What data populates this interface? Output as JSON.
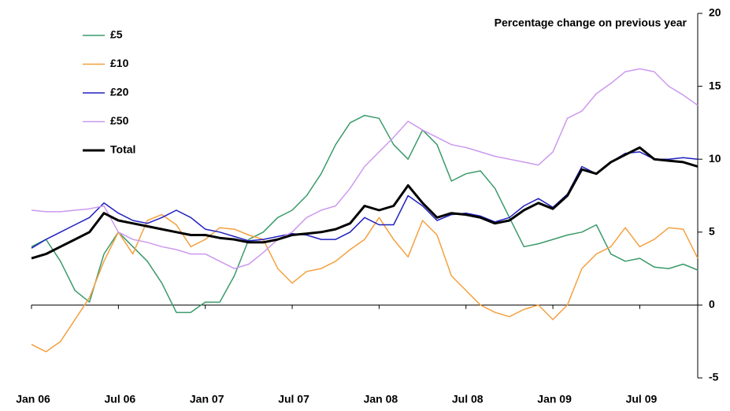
{
  "chart_data": {
    "type": "line",
    "title": "Percentage change on previous year",
    "categories": [
      "Jan 06",
      null,
      null,
      null,
      null,
      null,
      "Jul 06",
      null,
      null,
      null,
      null,
      null,
      "Jan 07",
      null,
      null,
      null,
      null,
      null,
      "Jul 07",
      null,
      null,
      null,
      null,
      null,
      "Jan 08",
      null,
      null,
      null,
      null,
      null,
      "Jul 08",
      null,
      null,
      null,
      null,
      null,
      "Jan 09",
      null,
      null,
      null,
      null,
      null,
      "Jul 09",
      null,
      null,
      null,
      null
    ],
    "series": [
      {
        "name": "£5",
        "color": "#3a9a6a",
        "values": [
          4.0,
          4.5,
          3.0,
          1.0,
          0.2,
          3.5,
          5.0,
          4.0,
          3.0,
          1.5,
          -0.5,
          -0.5,
          0.2,
          0.2,
          2.0,
          4.5,
          5.0,
          6.0,
          6.5,
          7.5,
          9.0,
          11.0,
          12.5,
          13.0,
          12.8,
          11.0,
          10.0,
          12.0,
          11.0,
          8.5,
          9.0,
          9.2,
          8.0,
          6.0,
          4.0,
          4.2,
          4.5,
          4.8,
          5.0,
          5.5,
          3.5,
          3.0,
          3.2,
          2.6,
          2.5,
          2.8,
          2.4
        ]
      },
      {
        "name": "£10",
        "color": "#f4a040",
        "values": [
          -2.7,
          -3.2,
          -2.5,
          -1.0,
          0.5,
          3.0,
          5.0,
          3.5,
          5.8,
          6.2,
          5.5,
          4.0,
          4.5,
          5.3,
          5.2,
          4.8,
          4.5,
          2.5,
          1.5,
          2.3,
          2.5,
          3.0,
          3.8,
          4.5,
          6.0,
          4.5,
          3.3,
          5.8,
          4.8,
          2.0,
          1.0,
          0.0,
          -0.5,
          -0.8,
          -0.3,
          0.0,
          -1.0,
          0.0,
          2.5,
          3.5,
          4.0,
          5.3,
          4.0,
          4.5,
          5.3,
          5.2,
          3.2
        ]
      },
      {
        "name": "£20",
        "color": "#2020c0",
        "values": [
          3.9,
          4.5,
          5.0,
          5.5,
          6.0,
          7.0,
          6.3,
          5.8,
          5.6,
          6.0,
          6.5,
          6.0,
          5.2,
          5.0,
          4.7,
          4.4,
          4.5,
          4.7,
          4.9,
          4.8,
          4.5,
          4.5,
          5.0,
          6.0,
          5.5,
          5.5,
          7.5,
          6.8,
          5.8,
          6.2,
          6.3,
          6.1,
          5.7,
          6.0,
          6.8,
          7.3,
          6.7,
          7.6,
          9.5,
          9.0,
          9.8,
          10.4,
          10.5,
          10.0,
          10.0,
          10.1,
          10.0
        ]
      },
      {
        "name": "£50",
        "color": "#cc99ee",
        "values": [
          6.5,
          6.4,
          6.4,
          6.5,
          6.6,
          6.8,
          5.0,
          4.5,
          4.3,
          4.0,
          3.8,
          3.5,
          3.5,
          3.0,
          2.5,
          2.8,
          3.6,
          4.5,
          5.0,
          6.0,
          6.5,
          6.8,
          8.0,
          9.5,
          10.5,
          11.5,
          12.6,
          12.0,
          11.5,
          11.0,
          10.8,
          10.5,
          10.2,
          10.0,
          9.8,
          9.6,
          10.5,
          12.8,
          13.3,
          14.5,
          15.2,
          16.0,
          16.2,
          16.0,
          15.0,
          14.4,
          13.7
        ]
      },
      {
        "name": "Total",
        "color": "#000000",
        "values": [
          3.2,
          3.5,
          4.0,
          4.5,
          5.0,
          6.3,
          5.8,
          5.6,
          5.4,
          5.2,
          5.0,
          4.8,
          4.8,
          4.6,
          4.5,
          4.3,
          4.3,
          4.5,
          4.8,
          4.9,
          5.0,
          5.2,
          5.6,
          6.8,
          6.5,
          6.8,
          8.2,
          7.0,
          6.0,
          6.3,
          6.2,
          6.0,
          5.6,
          5.8,
          6.5,
          7.0,
          6.6,
          7.5,
          9.3,
          9.0,
          9.8,
          10.3,
          10.8,
          10.0,
          9.9,
          9.8,
          9.5
        ]
      }
    ],
    "ylim": [
      -5,
      20
    ],
    "yticks": [
      -5,
      0,
      5,
      10,
      15,
      20
    ],
    "grid": false
  }
}
